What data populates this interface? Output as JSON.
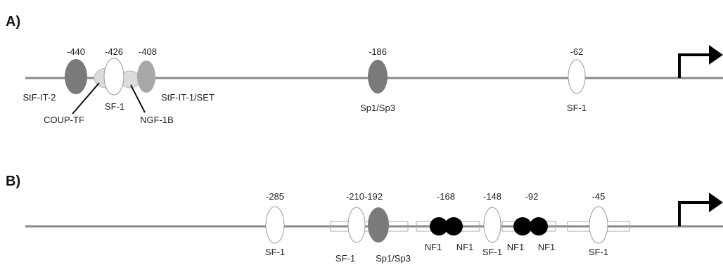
{
  "colors": {
    "line": "#8a8a8a",
    "dark_gray": "#7a7a7a",
    "mid_gray": "#a8a8a8",
    "light_gray": "#dcdcdc",
    "white": "#ffffff",
    "black": "#000000",
    "outline": "#9a9a9a",
    "arrow": "#000000"
  },
  "panel_a": {
    "label": "A)",
    "positions": {
      "p440": "-440",
      "p426": "-426",
      "p408": "-408",
      "p186": "-186",
      "p62": "-62"
    },
    "factors": {
      "stf_it_2": "StF-IT-2",
      "coup_tf": "COUP-TF",
      "sf1_a": "SF-1",
      "ngf_1b": "NGF-1B",
      "stf_it_1_set": "StF-IT-1/SET",
      "sp1_sp3": "Sp1/Sp3",
      "sf1_b": "SF-1"
    }
  },
  "panel_b": {
    "label": "B)",
    "positions": {
      "p285": "-285",
      "p210_192": "-210-192",
      "p168": "-168",
      "p148": "-148",
      "p92": "-92",
      "p45": "-45"
    },
    "factors": {
      "sf1_1": "SF-1",
      "sf1_2": "SF-1",
      "sp1_sp3": "Sp1/Sp3",
      "nf1_1": "NF1",
      "nf1_2": "NF1",
      "sf1_3": "SF-1",
      "nf1_3": "NF1",
      "nf1_4": "NF1",
      "sf1_4": "SF-1"
    }
  }
}
